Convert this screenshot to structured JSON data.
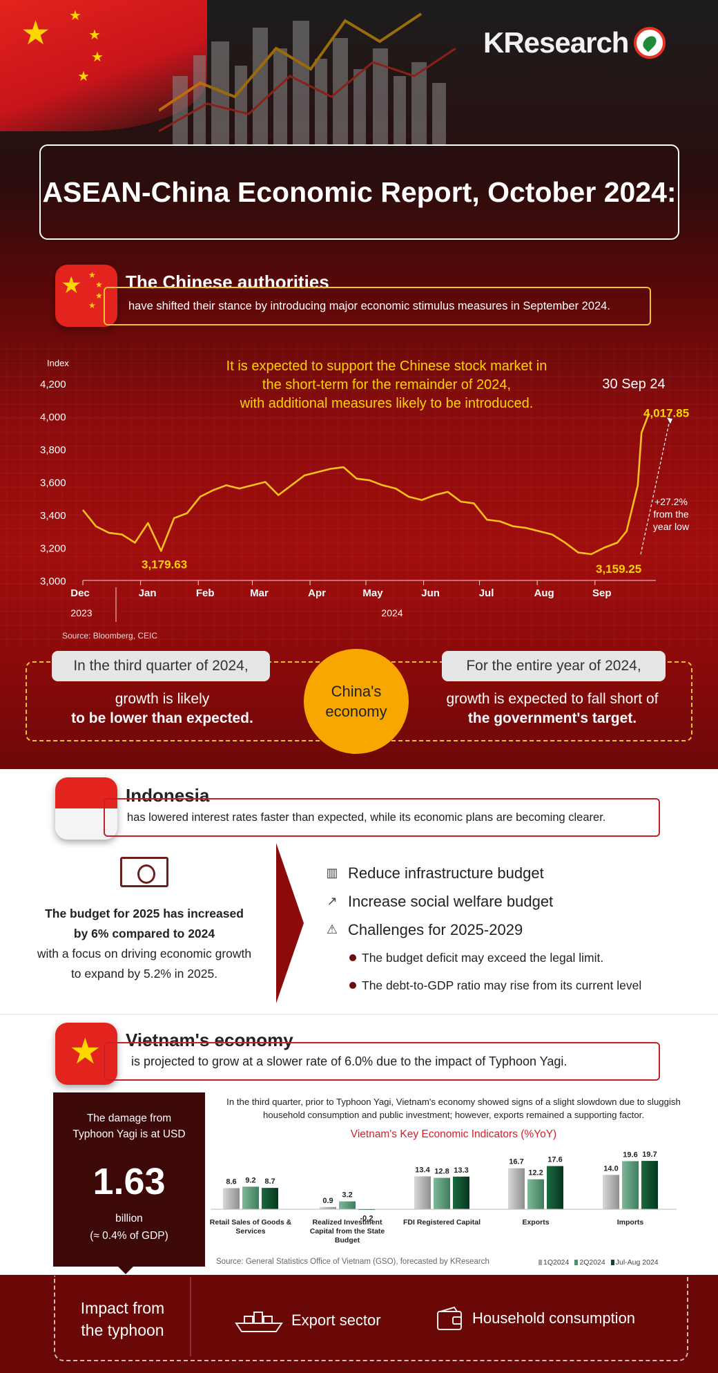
{
  "brand": "KResearch",
  "title": "ASEAN-China Economic Report, October 2024:",
  "china": {
    "heading": "The Chinese authorities",
    "subtext": "have shifted their stance by introducing major economic stimulus measures in September 2024.",
    "chart_caption_lines": [
      "It is expected to support the Chinese stock market in",
      "the short-term for the remainder of 2024,",
      "with additional measures likely to be introduced."
    ],
    "source": "Source: Bloomberg, CEIC",
    "q3_tag": "In the third quarter of 2024,",
    "q3_text_1": "growth is likely",
    "q3_text_2": "to be lower than expected.",
    "center_1": "China's",
    "center_2": "economy",
    "year_tag": "For the entire year of 2024,",
    "year_text_1": "growth is expected to fall short of",
    "year_text_2": "the government's target."
  },
  "chart_data": [
    {
      "type": "line",
      "ylabel": "Index",
      "ylim": [
        3000,
        4200
      ],
      "yticks": [
        "4,200",
        "4,000",
        "3,800",
        "3,600",
        "3,400",
        "3,200",
        "3,000"
      ],
      "x_ticks": [
        "Dec",
        "Jan",
        "Feb",
        "Mar",
        "Apr",
        "May",
        "Jun",
        "Jul",
        "Aug",
        "Sep"
      ],
      "x_years": [
        "2023",
        "2024"
      ],
      "x": [
        "2023-12-01",
        "2023-12-08",
        "2023-12-15",
        "2023-12-22",
        "2023-12-29",
        "2024-01-05",
        "2024-01-12",
        "2024-01-19",
        "2024-01-26",
        "2024-02-02",
        "2024-02-09",
        "2024-02-16",
        "2024-02-23",
        "2024-03-01",
        "2024-03-08",
        "2024-03-15",
        "2024-03-22",
        "2024-03-29",
        "2024-04-05",
        "2024-04-12",
        "2024-04-19",
        "2024-04-26",
        "2024-05-03",
        "2024-05-10",
        "2024-05-17",
        "2024-05-24",
        "2024-05-31",
        "2024-06-07",
        "2024-06-14",
        "2024-06-21",
        "2024-06-28",
        "2024-07-05",
        "2024-07-12",
        "2024-07-19",
        "2024-07-26",
        "2024-08-02",
        "2024-08-09",
        "2024-08-16",
        "2024-08-23",
        "2024-08-30",
        "2024-09-06",
        "2024-09-13",
        "2024-09-18",
        "2024-09-24",
        "2024-09-26",
        "2024-09-30"
      ],
      "values": [
        3430,
        3330,
        3290,
        3280,
        3230,
        3350,
        3180,
        3380,
        3410,
        3510,
        3550,
        3580,
        3560,
        3580,
        3600,
        3520,
        3580,
        3640,
        3660,
        3680,
        3690,
        3620,
        3610,
        3580,
        3560,
        3510,
        3490,
        3520,
        3540,
        3480,
        3470,
        3370,
        3360,
        3330,
        3320,
        3300,
        3280,
        3230,
        3170,
        3160,
        3200,
        3230,
        3300,
        3580,
        3900,
        4017.85
      ],
      "annotations": {
        "date_label": "30 Sep 24",
        "last_value": "4,017.85",
        "low_jan": "3,179.63",
        "low_sep": "3,159.25",
        "change": [
          "+27.2%",
          "from the",
          "year low"
        ]
      }
    },
    {
      "type": "bar",
      "title": "Vietnam's Key Economic Indicators (%YoY)",
      "categories": [
        "Retail Sales of Goods & Services",
        "Realized Investment Capital from the State Budget",
        "FDI Registered Capital",
        "Exports",
        "Imports"
      ],
      "series": [
        {
          "name": "1Q2024",
          "values": [
            8.6,
            0.9,
            13.4,
            16.7,
            14.0
          ]
        },
        {
          "name": "2Q2024",
          "values": [
            9.2,
            3.2,
            12.8,
            12.2,
            19.6
          ]
        },
        {
          "name": "Jul-Aug 2024",
          "values": [
            8.7,
            -0.2,
            13.3,
            17.6,
            19.7
          ]
        }
      ],
      "value_labels": [
        [
          "8.6",
          "9.2",
          "8.7"
        ],
        [
          "0.9",
          "3.2",
          "-0.2"
        ],
        [
          "13.4",
          "12.8",
          "13.3"
        ],
        [
          "16.7",
          "12.2",
          "17.6"
        ],
        [
          "14.0",
          "19.6",
          "19.7"
        ]
      ],
      "colors": [
        "#a9a9a9",
        "#4f8f6d",
        "#0c4a2b"
      ],
      "source": "Source: General Statistics Office of Vietnam (GSO), forecasted by KResearch"
    }
  ],
  "indonesia": {
    "heading": "Indonesia",
    "subtext": "has lowered interest rates faster than expected, while its economic plans are becoming clearer.",
    "budget_1": "The budget for 2025 has increased",
    "budget_2": "by 6% compared to 2024",
    "budget_3": "with a focus on driving economic growth",
    "budget_4": "to expand by 5.2% in 2025.",
    "points": [
      "Reduce infrastructure budget",
      "Increase social welfare budget",
      "Challenges for 2025-2029"
    ],
    "bullets": [
      "The budget deficit may exceed the legal limit.",
      "The debt-to-GDP ratio may rise from its current level"
    ],
    "icons": [
      "building-icon",
      "chart-up-icon",
      "warning-icon"
    ]
  },
  "vietnam": {
    "heading": "Vietnam's economy",
    "subtext": "is projected to grow at a slower rate of 6.0% due to the impact of Typhoon Yagi.",
    "damage_1": "The damage from",
    "damage_2": "Typhoon Yagi is at USD",
    "damage_value": "1.63",
    "damage_unit": "billion",
    "damage_note": "(≈ 0.4% of GDP)",
    "intro_1": "In the third quarter, prior to Typhoon Yagi, Vietnam's economy showed signs of a slight slowdown due to sluggish",
    "intro_2": "household consumption and public investment; however, exports remained a supporting factor.",
    "impact_1": "Impact from",
    "impact_2": "the typhoon",
    "sector_1": "Export sector",
    "sector_2": "Household consumption"
  },
  "colors": {
    "accent_yellow": "#ffd400",
    "dark_red": "#6a0707",
    "china_red": "#d1202c"
  }
}
